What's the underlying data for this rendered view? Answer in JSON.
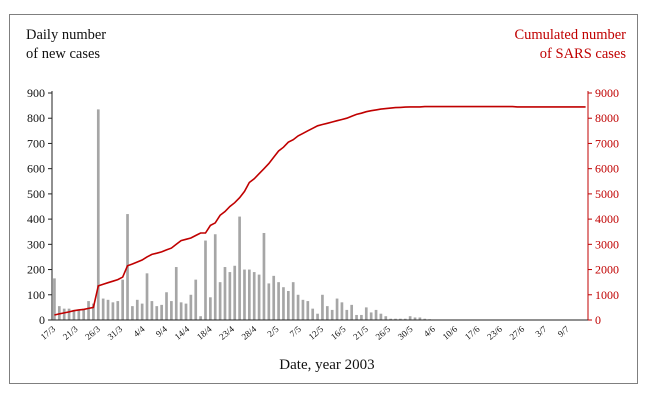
{
  "chart_data": {
    "type": "bar+line",
    "left_axis_label_line1": "Daily number",
    "left_axis_label_line2": "of new cases",
    "right_axis_label_line1": "Cumulated number",
    "right_axis_label_line2": "of SARS cases",
    "xlabel": "Date, year 2003",
    "left_ylim": [
      0,
      900
    ],
    "right_ylim": [
      0,
      9000
    ],
    "left_yticks": [
      "0",
      "100",
      "200",
      "300",
      "400",
      "500",
      "600",
      "700",
      "800",
      "900"
    ],
    "right_yticks": [
      "0",
      "1000",
      "2000",
      "3000",
      "4000",
      "5000",
      "6000",
      "7000",
      "8000",
      "9000"
    ],
    "x_tick_labels": [
      "17/3",
      "21/3",
      "26/3",
      "31/3",
      "4/4",
      "9/4",
      "14/4",
      "18/4",
      "23/4",
      "28/4",
      "2/5",
      "7/5",
      "12/5",
      "16/5",
      "21/5",
      "26/5",
      "30/5",
      "4/6",
      "10/6",
      "17/6",
      "23/6",
      "27/6",
      "3/7",
      "9/7"
    ],
    "daily_new_cases": [
      165,
      55,
      45,
      45,
      40,
      40,
      45,
      75,
      65,
      835,
      85,
      80,
      70,
      75,
      160,
      420,
      55,
      80,
      65,
      185,
      75,
      55,
      60,
      110,
      75,
      210,
      70,
      65,
      100,
      160,
      15,
      315,
      90,
      340,
      150,
      210,
      190,
      215,
      410,
      200,
      200,
      190,
      180,
      345,
      145,
      175,
      150,
      130,
      115,
      150,
      100,
      80,
      75,
      45,
      25,
      100,
      55,
      40,
      85,
      70,
      40,
      60,
      20,
      20,
      50,
      30,
      40,
      25,
      15,
      5,
      5,
      5,
      5,
      15,
      10,
      10,
      5,
      3,
      2,
      2,
      1,
      1,
      1,
      1,
      1,
      1,
      1,
      1,
      1,
      1,
      1,
      1,
      1,
      1,
      1,
      1,
      1,
      1,
      1,
      1,
      1,
      1,
      1,
      1,
      1,
      1,
      1,
      1,
      1,
      1
    ],
    "cumulative_cases": [
      200,
      240,
      280,
      320,
      370,
      400,
      420,
      460,
      500,
      1350,
      1420,
      1480,
      1540,
      1600,
      1700,
      2150,
      2220,
      2300,
      2380,
      2500,
      2600,
      2650,
      2700,
      2780,
      2850,
      3000,
      3150,
      3200,
      3250,
      3350,
      3450,
      3450,
      3750,
      3850,
      4150,
      4300,
      4500,
      4650,
      4850,
      5100,
      5450,
      5600,
      5800,
      6000,
      6200,
      6450,
      6700,
      6850,
      7050,
      7150,
      7300,
      7400,
      7500,
      7600,
      7700,
      7750,
      7800,
      7850,
      7900,
      7950,
      8000,
      8080,
      8150,
      8200,
      8260,
      8300,
      8330,
      8360,
      8380,
      8400,
      8420,
      8430,
      8440,
      8450,
      8450,
      8450,
      8460,
      8460,
      8460,
      8460,
      8460,
      8460,
      8460,
      8460,
      8460,
      8460,
      8460,
      8460,
      8460,
      8460,
      8460,
      8460,
      8460,
      8460,
      8460,
      8450,
      8450,
      8450,
      8450,
      8450,
      8450,
      8450,
      8450,
      8450,
      8450,
      8450,
      8450,
      8450,
      8450,
      8450
    ],
    "bar_color": "#a6a6a6",
    "line_color": "#c00000",
    "grid": false
  }
}
